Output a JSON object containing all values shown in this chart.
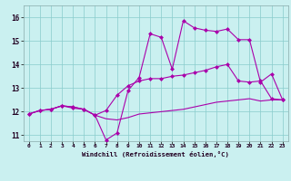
{
  "xlabel": "Windchill (Refroidissement éolien,°C)",
  "bg_color": "#caf0f0",
  "line_color": "#aa00aa",
  "xlim": [
    -0.5,
    23.5
  ],
  "ylim": [
    10.75,
    16.5
  ],
  "yticks": [
    11,
    12,
    13,
    14,
    15,
    16
  ],
  "xticks": [
    0,
    1,
    2,
    3,
    4,
    5,
    6,
    7,
    8,
    9,
    10,
    11,
    12,
    13,
    14,
    15,
    16,
    17,
    18,
    19,
    20,
    21,
    22,
    23
  ],
  "line1_x": [
    0,
    1,
    2,
    3,
    4,
    5,
    6,
    7,
    8,
    9,
    10,
    11,
    12,
    13,
    14,
    15,
    16,
    17,
    18,
    19,
    20,
    21,
    22,
    23
  ],
  "line1_y": [
    11.9,
    12.05,
    12.1,
    12.25,
    12.2,
    12.1,
    11.85,
    11.7,
    11.65,
    11.75,
    11.9,
    11.95,
    12.0,
    12.05,
    12.1,
    12.2,
    12.3,
    12.4,
    12.45,
    12.5,
    12.55,
    12.45,
    12.5,
    12.5
  ],
  "line2_x": [
    0,
    1,
    2,
    3,
    4,
    5,
    6,
    7,
    8,
    9,
    10,
    11,
    12,
    13,
    14,
    15,
    16,
    17,
    18,
    19,
    20,
    21,
    22,
    23
  ],
  "line2_y": [
    11.9,
    12.05,
    12.1,
    12.25,
    12.2,
    12.1,
    11.85,
    12.05,
    12.7,
    13.1,
    13.3,
    13.4,
    13.4,
    13.5,
    13.55,
    13.65,
    13.75,
    13.9,
    14.0,
    13.3,
    13.25,
    13.3,
    12.55,
    12.5
  ],
  "line3_x": [
    0,
    1,
    2,
    3,
    4,
    5,
    6,
    7,
    8,
    9,
    10,
    11,
    12,
    13,
    14,
    15,
    16,
    17,
    18,
    19,
    20,
    21,
    22,
    23
  ],
  "line3_y": [
    11.9,
    12.05,
    12.1,
    12.25,
    12.15,
    12.1,
    11.85,
    10.8,
    11.1,
    12.9,
    13.45,
    15.3,
    15.15,
    13.8,
    15.85,
    15.55,
    15.45,
    15.4,
    15.5,
    15.05,
    15.05,
    13.25,
    13.6,
    12.5
  ]
}
